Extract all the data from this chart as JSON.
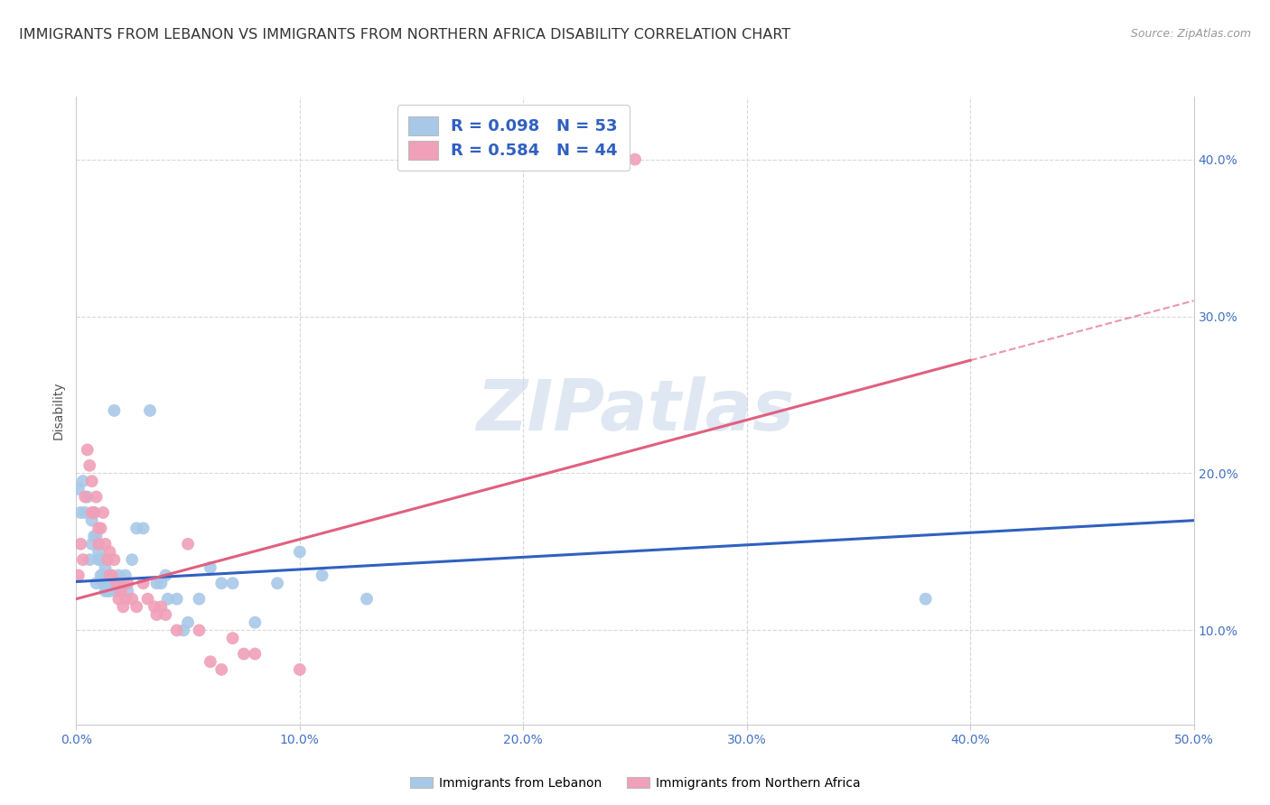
{
  "title": "IMMIGRANTS FROM LEBANON VS IMMIGRANTS FROM NORTHERN AFRICA DISABILITY CORRELATION CHART",
  "source": "Source: ZipAtlas.com",
  "ylabel": "Disability",
  "xlabel_blue": "Immigrants from Lebanon",
  "xlabel_pink": "Immigrants from Northern Africa",
  "watermark": "ZIPatlas",
  "xlim": [
    0.0,
    0.5
  ],
  "ylim": [
    0.04,
    0.44
  ],
  "xticks": [
    0.0,
    0.1,
    0.2,
    0.3,
    0.4,
    0.5
  ],
  "yticks": [
    0.1,
    0.2,
    0.3,
    0.4
  ],
  "ytick_labels": [
    "10.0%",
    "20.0%",
    "30.0%",
    "40.0%"
  ],
  "xtick_labels": [
    "0.0%",
    "10.0%",
    "20.0%",
    "30.0%",
    "40.0%",
    "50.0%"
  ],
  "legend_blue_R": "R = 0.098",
  "legend_blue_N": "N = 53",
  "legend_pink_R": "R = 0.584",
  "legend_pink_N": "N = 44",
  "blue_color": "#a8c8e8",
  "pink_color": "#f0a0b8",
  "blue_line_color": "#3060c0",
  "pink_line_color": "#e06080",
  "blue_scatter": [
    [
      0.001,
      0.19
    ],
    [
      0.002,
      0.175
    ],
    [
      0.003,
      0.195
    ],
    [
      0.004,
      0.175
    ],
    [
      0.005,
      0.185
    ],
    [
      0.006,
      0.145
    ],
    [
      0.007,
      0.155
    ],
    [
      0.007,
      0.17
    ],
    [
      0.008,
      0.16
    ],
    [
      0.008,
      0.175
    ],
    [
      0.009,
      0.16
    ],
    [
      0.009,
      0.13
    ],
    [
      0.01,
      0.15
    ],
    [
      0.01,
      0.145
    ],
    [
      0.011,
      0.135
    ],
    [
      0.011,
      0.145
    ],
    [
      0.012,
      0.135
    ],
    [
      0.012,
      0.13
    ],
    [
      0.013,
      0.14
    ],
    [
      0.013,
      0.125
    ],
    [
      0.014,
      0.13
    ],
    [
      0.014,
      0.125
    ],
    [
      0.015,
      0.135
    ],
    [
      0.015,
      0.125
    ],
    [
      0.016,
      0.13
    ],
    [
      0.017,
      0.24
    ],
    [
      0.018,
      0.125
    ],
    [
      0.019,
      0.135
    ],
    [
      0.02,
      0.13
    ],
    [
      0.021,
      0.13
    ],
    [
      0.022,
      0.135
    ],
    [
      0.023,
      0.125
    ],
    [
      0.025,
      0.145
    ],
    [
      0.027,
      0.165
    ],
    [
      0.03,
      0.165
    ],
    [
      0.033,
      0.24
    ],
    [
      0.036,
      0.13
    ],
    [
      0.038,
      0.13
    ],
    [
      0.04,
      0.135
    ],
    [
      0.041,
      0.12
    ],
    [
      0.045,
      0.12
    ],
    [
      0.048,
      0.1
    ],
    [
      0.05,
      0.105
    ],
    [
      0.055,
      0.12
    ],
    [
      0.06,
      0.14
    ],
    [
      0.065,
      0.13
    ],
    [
      0.07,
      0.13
    ],
    [
      0.08,
      0.105
    ],
    [
      0.09,
      0.13
    ],
    [
      0.1,
      0.15
    ],
    [
      0.11,
      0.135
    ],
    [
      0.13,
      0.12
    ],
    [
      0.38,
      0.12
    ]
  ],
  "pink_scatter": [
    [
      0.001,
      0.135
    ],
    [
      0.002,
      0.155
    ],
    [
      0.003,
      0.145
    ],
    [
      0.004,
      0.185
    ],
    [
      0.005,
      0.215
    ],
    [
      0.006,
      0.205
    ],
    [
      0.007,
      0.195
    ],
    [
      0.007,
      0.175
    ],
    [
      0.008,
      0.175
    ],
    [
      0.009,
      0.185
    ],
    [
      0.01,
      0.165
    ],
    [
      0.01,
      0.155
    ],
    [
      0.011,
      0.165
    ],
    [
      0.012,
      0.175
    ],
    [
      0.013,
      0.155
    ],
    [
      0.014,
      0.145
    ],
    [
      0.015,
      0.15
    ],
    [
      0.015,
      0.135
    ],
    [
      0.016,
      0.135
    ],
    [
      0.017,
      0.145
    ],
    [
      0.018,
      0.13
    ],
    [
      0.019,
      0.12
    ],
    [
      0.02,
      0.125
    ],
    [
      0.021,
      0.115
    ],
    [
      0.022,
      0.12
    ],
    [
      0.023,
      0.13
    ],
    [
      0.025,
      0.12
    ],
    [
      0.027,
      0.115
    ],
    [
      0.03,
      0.13
    ],
    [
      0.032,
      0.12
    ],
    [
      0.035,
      0.115
    ],
    [
      0.036,
      0.11
    ],
    [
      0.038,
      0.115
    ],
    [
      0.04,
      0.11
    ],
    [
      0.045,
      0.1
    ],
    [
      0.05,
      0.155
    ],
    [
      0.055,
      0.1
    ],
    [
      0.06,
      0.08
    ],
    [
      0.065,
      0.075
    ],
    [
      0.07,
      0.095
    ],
    [
      0.075,
      0.085
    ],
    [
      0.08,
      0.085
    ],
    [
      0.1,
      0.075
    ],
    [
      0.25,
      0.4
    ]
  ],
  "blue_line": [
    [
      0.0,
      0.131
    ],
    [
      0.5,
      0.17
    ]
  ],
  "pink_line_solid": [
    [
      0.0,
      0.12
    ],
    [
      0.4,
      0.272
    ]
  ],
  "pink_line_dashed": [
    [
      0.4,
      0.272
    ],
    [
      0.5,
      0.31
    ]
  ],
  "background_color": "#ffffff",
  "grid_color": "#d8d8d8",
  "title_fontsize": 11.5,
  "axis_label_fontsize": 10,
  "tick_fontsize": 10,
  "legend_fontsize": 13,
  "watermark_color": "#c5d5ea",
  "watermark_fontsize": 56,
  "source_fontsize": 9,
  "right_ytick_color": "#4472c4"
}
